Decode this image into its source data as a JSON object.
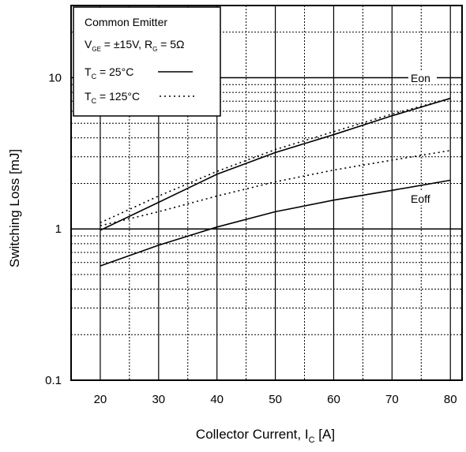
{
  "chart_data": {
    "type": "line",
    "xlabel": "Collector Current, I",
    "xlabel_sub": "C",
    "xlabel_unit": " [A]",
    "ylabel": "Switching Loss [mJ]",
    "x_scale": "linear",
    "y_scale": "log",
    "xlim": [
      15,
      82
    ],
    "ylim": [
      0.1,
      30
    ],
    "x_ticks": [
      20,
      30,
      40,
      50,
      60,
      70,
      80
    ],
    "x_tick_labels": [
      "20",
      "30",
      "40",
      "50",
      "60",
      "70",
      "80"
    ],
    "y_ticks": [
      0.1,
      1,
      10
    ],
    "y_tick_labels": [
      "0.1",
      "1",
      "10"
    ],
    "grid": true,
    "legend": {
      "placement": "top-left",
      "title": "Common Emitter",
      "conditions": {
        "v": "V",
        "v_sub": "GE",
        "v_val": " = ±15V, R",
        "r_sub": "G",
        "r_val": " = 5Ω"
      },
      "entries": [
        {
          "prefix": "T",
          "sub": "C",
          "label": " = 25°C",
          "style": "solid"
        },
        {
          "prefix": "T",
          "sub": "C",
          "label": " = 125°C",
          "style": "dotted"
        }
      ]
    },
    "annotations": {
      "eon": "Eon",
      "eoff": "Eoff"
    },
    "series": [
      {
        "group": "Eon",
        "temperature": "25°C",
        "style": "solid",
        "x": [
          20,
          30,
          40,
          50,
          60,
          70,
          80
        ],
        "y": [
          0.98,
          1.5,
          2.3,
          3.2,
          4.2,
          5.6,
          7.3
        ]
      },
      {
        "group": "Eon",
        "temperature": "125°C",
        "style": "dotted",
        "x": [
          20,
          30,
          40,
          50,
          60,
          70,
          80
        ],
        "y": [
          1.1,
          1.65,
          2.4,
          3.35,
          4.4,
          5.75,
          7.3
        ]
      },
      {
        "group": "Eoff",
        "temperature": "125°C",
        "style": "dotted",
        "x": [
          20,
          30,
          40,
          50,
          60,
          70,
          80
        ],
        "y": [
          1.05,
          1.3,
          1.65,
          2.05,
          2.45,
          2.85,
          3.3
        ]
      },
      {
        "group": "Eoff",
        "temperature": "25°C",
        "style": "solid",
        "x": [
          20,
          30,
          40,
          50,
          60,
          70,
          80
        ],
        "y": [
          0.57,
          0.78,
          1.03,
          1.3,
          1.55,
          1.8,
          2.1
        ]
      }
    ],
    "colors": {
      "line": "#000000",
      "grid_major": "#000000",
      "grid_minor": "#000000",
      "background": "#ffffff"
    }
  }
}
